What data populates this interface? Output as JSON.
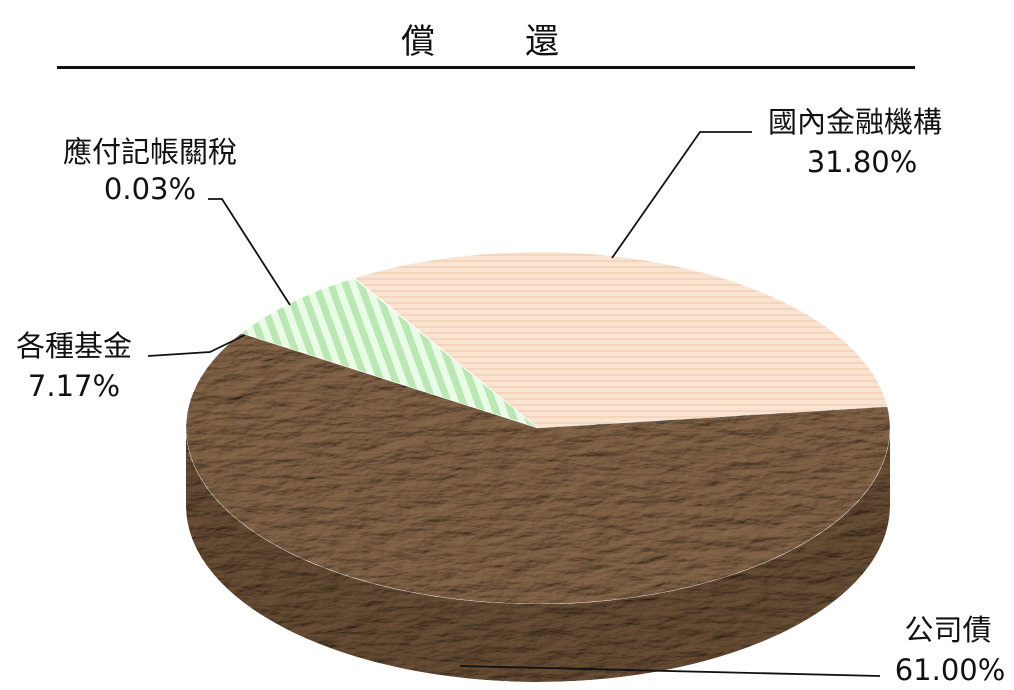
{
  "chart_data": {
    "type": "pie",
    "title": "償還",
    "slices": [
      {
        "label": "國內金融機構",
        "value": 31.8,
        "display": "31.80%",
        "color": "#f6dcc6"
      },
      {
        "label": "公司債",
        "value": 61.0,
        "display": "61.00%",
        "color": "#8b6a4c"
      },
      {
        "label": "各種基金",
        "value": 7.17,
        "display": "7.17%",
        "color": "#c8eec4"
      },
      {
        "label": "應付記帳關稅",
        "value": 0.03,
        "display": "0.03%",
        "color": "#f5f5f5"
      }
    ],
    "three_d": true
  }
}
